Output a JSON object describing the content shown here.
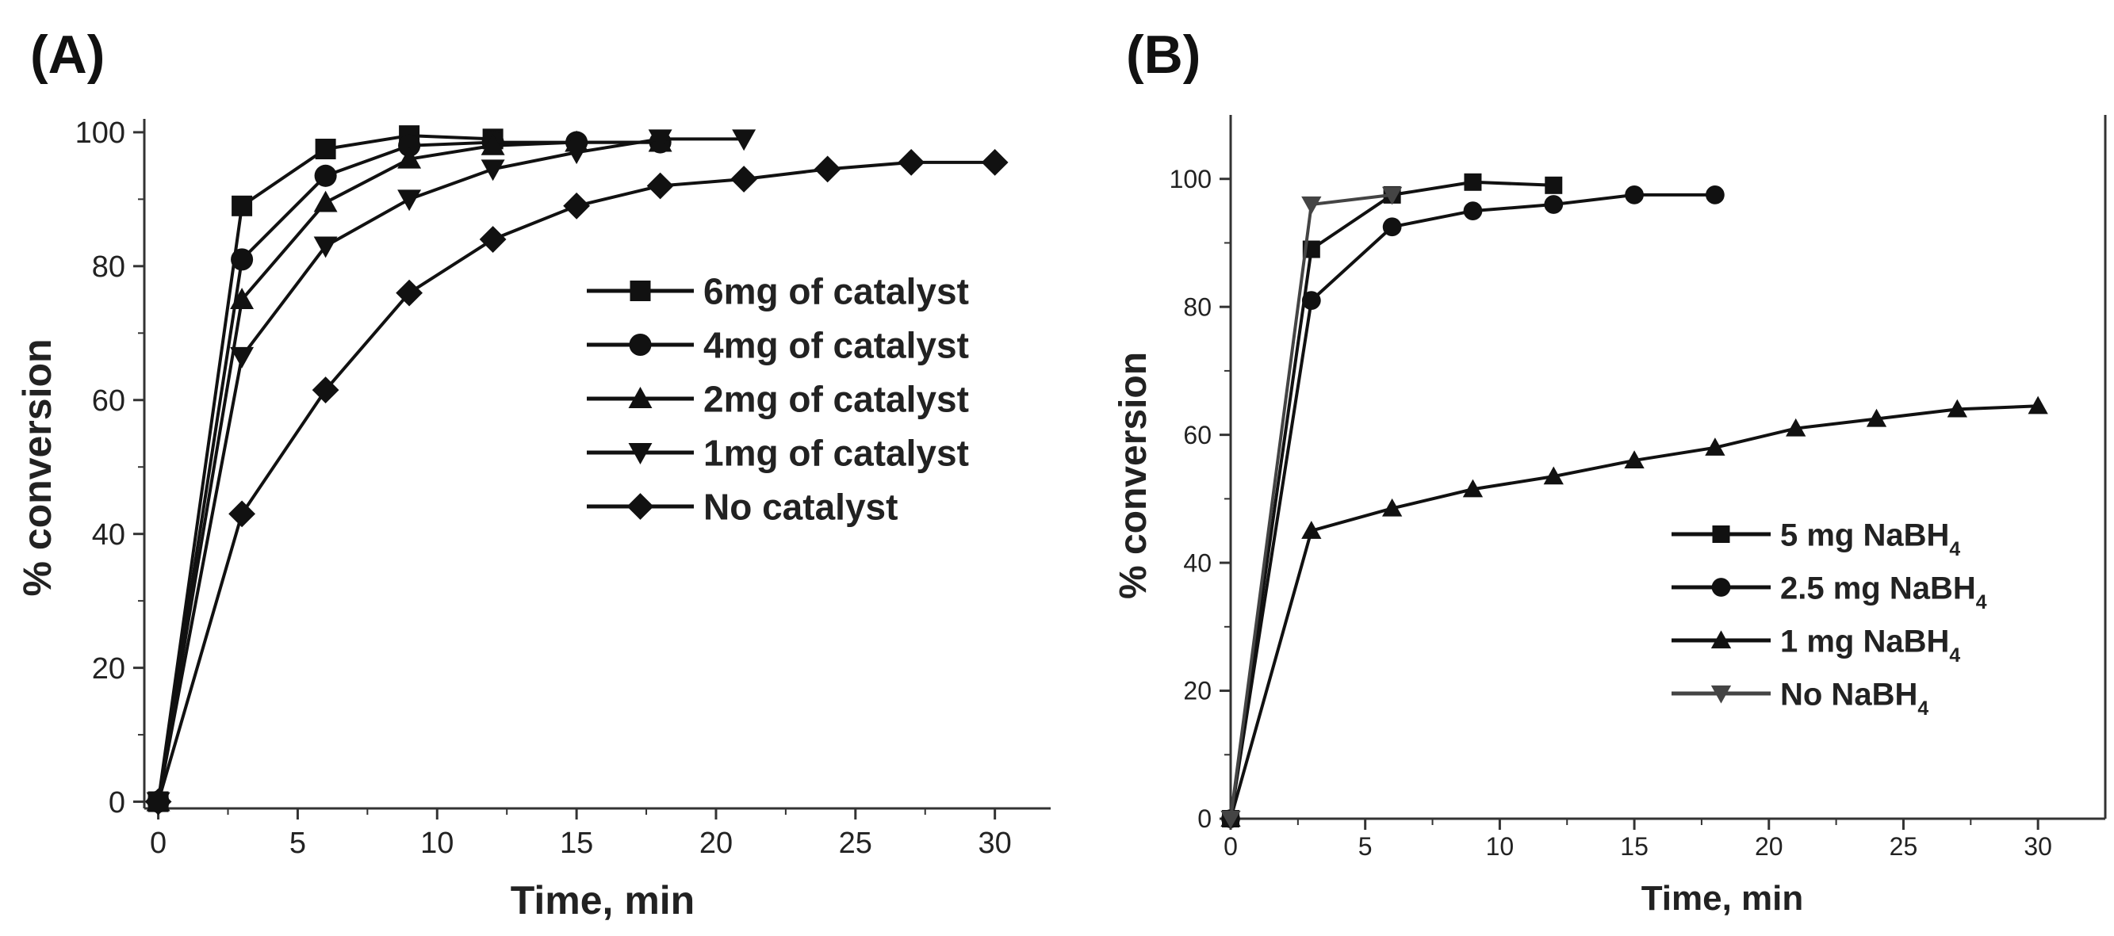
{
  "chart_data": [
    {
      "type": "line",
      "panel_label": "(A)",
      "xlabel": "Time, min",
      "ylabel": "% conversion",
      "xlim": [
        -0.5,
        32
      ],
      "ylim": [
        -1,
        102
      ],
      "xticks": [
        0,
        5,
        10,
        15,
        20,
        25,
        30
      ],
      "yticks": [
        0,
        20,
        40,
        60,
        80,
        100
      ],
      "legend_position": "center-right",
      "series": [
        {
          "name": "6mg of catalyst",
          "marker": "square",
          "color": "#111111",
          "x": [
            0,
            3,
            6,
            9,
            12
          ],
          "y": [
            0,
            89,
            97.5,
            99.5,
            99
          ]
        },
        {
          "name": "4mg of catalyst",
          "marker": "circle",
          "color": "#111111",
          "x": [
            0,
            3,
            6,
            9,
            12,
            15,
            18
          ],
          "y": [
            0,
            81,
            93.5,
            98,
            98.5,
            98.5,
            98.5
          ]
        },
        {
          "name": "2mg of catalyst",
          "marker": "triangle-up",
          "color": "#111111",
          "x": [
            0,
            3,
            6,
            9,
            12,
            15,
            18
          ],
          "y": [
            0,
            75,
            89.5,
            96,
            98,
            98.5,
            98.5
          ]
        },
        {
          "name": "1mg of catalyst",
          "marker": "triangle-down",
          "color": "#111111",
          "x": [
            0,
            3,
            6,
            9,
            12,
            15,
            18,
            21
          ],
          "y": [
            0,
            66.5,
            83,
            90,
            94.5,
            97,
            99,
            99
          ]
        },
        {
          "name": "No catalyst",
          "marker": "diamond",
          "color": "#111111",
          "x": [
            0,
            3,
            6,
            9,
            12,
            15,
            18,
            21,
            24,
            27,
            30
          ],
          "y": [
            0,
            43,
            61.5,
            76,
            84,
            89,
            92,
            93,
            94.5,
            95.5,
            95.5
          ]
        }
      ]
    },
    {
      "type": "line",
      "panel_label": "(B)",
      "xlabel": "Time, min",
      "ylabel": "% conversion",
      "xlim": [
        0,
        32.5
      ],
      "ylim": [
        0,
        110
      ],
      "xticks": [
        0,
        5,
        10,
        15,
        20,
        25,
        30
      ],
      "yticks": [
        0,
        20,
        40,
        60,
        80,
        100
      ],
      "legend_position": "lower-right",
      "series": [
        {
          "name": "5 mg NaBH",
          "sub": "4",
          "marker": "square",
          "color": "#111111",
          "x": [
            0,
            3,
            6,
            9,
            12
          ],
          "y": [
            0,
            89,
            97.5,
            99.5,
            99
          ]
        },
        {
          "name": "2.5 mg NaBH",
          "sub": "4",
          "marker": "circle",
          "color": "#111111",
          "x": [
            0,
            3,
            6,
            9,
            12,
            15,
            18
          ],
          "y": [
            0,
            81,
            92.5,
            95,
            96,
            97.5,
            97.5
          ]
        },
        {
          "name": "1 mg NaBH",
          "sub": "4",
          "marker": "triangle-up",
          "color": "#111111",
          "x": [
            0,
            3,
            6,
            9,
            12,
            15,
            18,
            21,
            24,
            27,
            30
          ],
          "y": [
            0,
            45,
            48.5,
            51.5,
            53.5,
            56,
            58,
            61,
            62.5,
            64,
            64.5
          ]
        },
        {
          "name": "No NaBH",
          "sub": "4",
          "marker": "triangle-down",
          "color": "#444444",
          "x": [
            0,
            3,
            6
          ],
          "y": [
            0,
            96,
            97.5
          ]
        }
      ]
    }
  ]
}
